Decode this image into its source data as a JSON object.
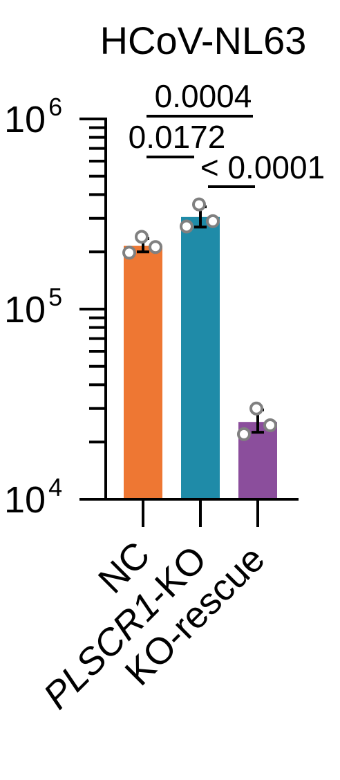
{
  "chart_data": {
    "type": "bar",
    "title": "HCoV-NL63",
    "xlabel": "",
    "ylabel": "",
    "y_scale": "log",
    "ylim": [
      10000,
      1000000
    ],
    "y_ticks": [
      {
        "value": 10000,
        "base": "10",
        "exp": "4"
      },
      {
        "value": 100000,
        "base": "10",
        "exp": "5"
      },
      {
        "value": 1000000,
        "base": "10",
        "exp": "6"
      }
    ],
    "categories": [
      "NC",
      "PLSCR1-KO",
      "KO-rescue"
    ],
    "category_styles": [
      "normal",
      "italic-prefix",
      "normal"
    ],
    "category_italic_part": [
      "",
      "PLSCR1",
      ""
    ],
    "category_plain_part": [
      "NC",
      "-KO",
      "KO-rescue"
    ],
    "values": [
      215000,
      305000,
      25500
    ],
    "error": [
      {
        "low": 200000,
        "high": 235000
      },
      {
        "low": 270000,
        "high": 345000
      },
      {
        "low": 22500,
        "high": 29500
      }
    ],
    "points": [
      [
        240000,
        198000,
        212000
      ],
      [
        355000,
        272000,
        290000
      ],
      [
        30000,
        22000,
        24500
      ]
    ],
    "colors": [
      "#EE7733",
      "#1F8BA8",
      "#8B4E9C"
    ],
    "point_stroke": "#808080",
    "significance": [
      {
        "from": 0,
        "to": 2,
        "label": "0.0004"
      },
      {
        "from": 0,
        "to": 1,
        "label": "0.0172"
      },
      {
        "from": 1,
        "to": 2,
        "label": "< 0.0001"
      }
    ],
    "grid": false,
    "legend": "none"
  }
}
